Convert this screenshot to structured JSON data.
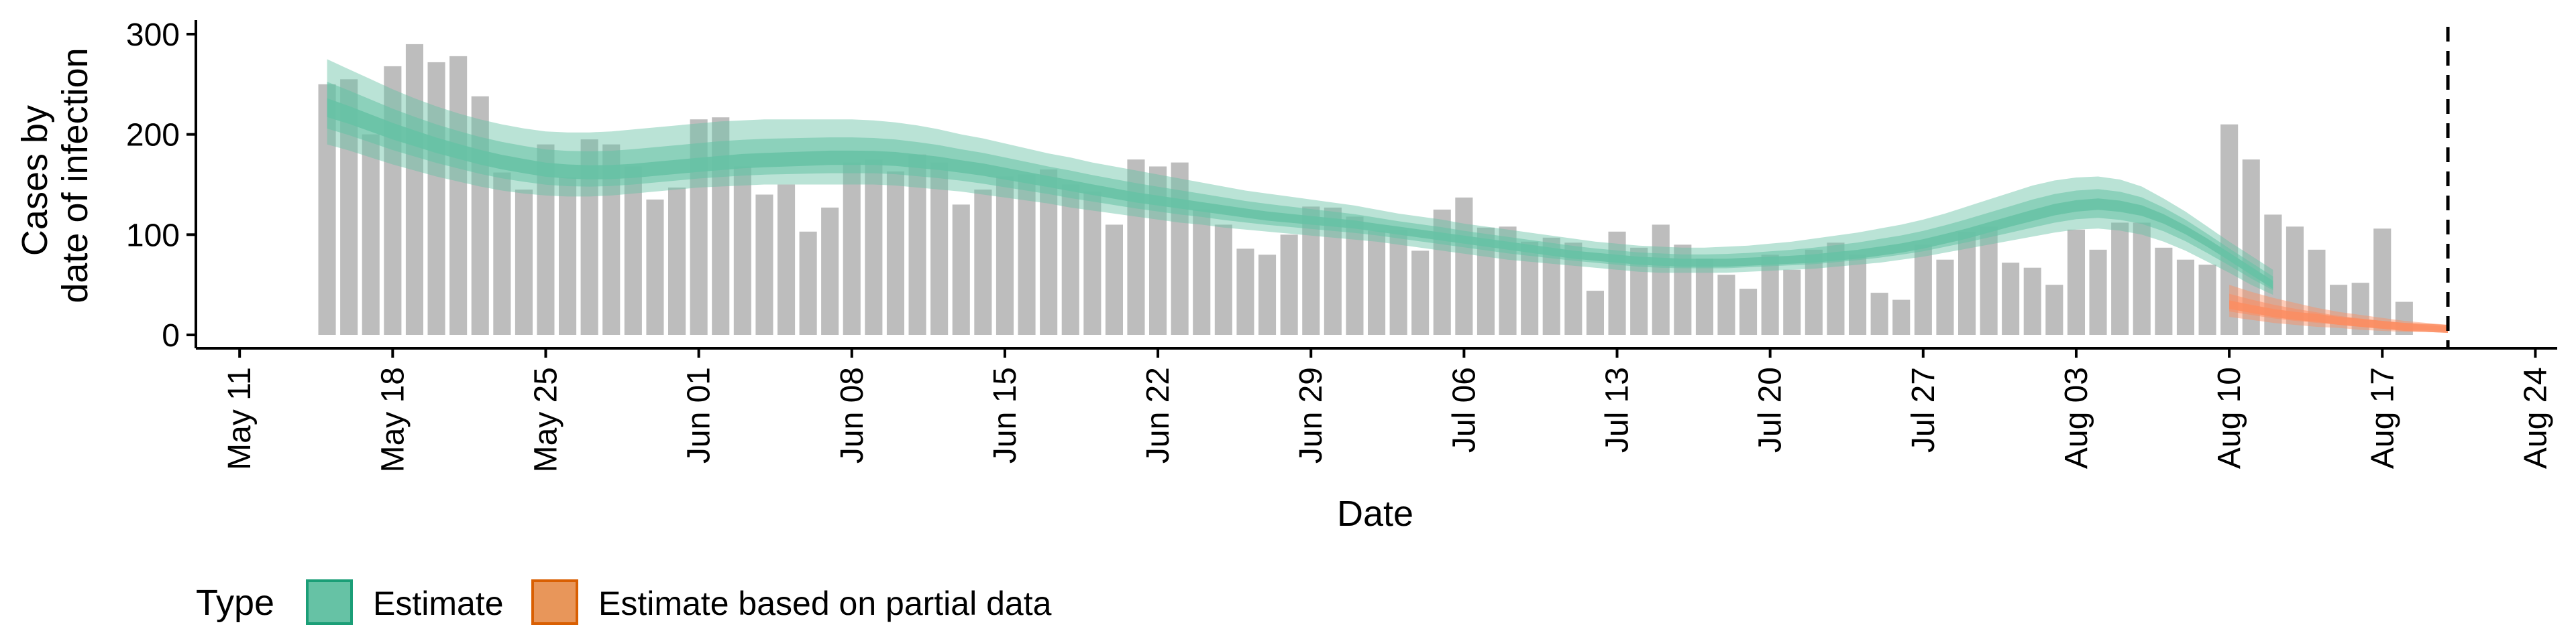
{
  "chart_data": {
    "type": "bar",
    "title": "",
    "xlabel": "Date",
    "ylabel_lines": [
      "Cases by",
      "date of infection"
    ],
    "ylim": [
      0,
      310
    ],
    "yticks": [
      0,
      100,
      200,
      300
    ],
    "x_ticks": [
      {
        "label": "May 11",
        "date": "2020-05-11"
      },
      {
        "label": "May 18",
        "date": "2020-05-18"
      },
      {
        "label": "May 25",
        "date": "2020-05-25"
      },
      {
        "label": "Jun 01",
        "date": "2020-06-01"
      },
      {
        "label": "Jun 08",
        "date": "2020-06-08"
      },
      {
        "label": "Jun 15",
        "date": "2020-06-15"
      },
      {
        "label": "Jun 22",
        "date": "2020-06-22"
      },
      {
        "label": "Jun 29",
        "date": "2020-06-29"
      },
      {
        "label": "Jul 06",
        "date": "2020-07-06"
      },
      {
        "label": "Jul 13",
        "date": "2020-07-13"
      },
      {
        "label": "Jul 20",
        "date": "2020-07-20"
      },
      {
        "label": "Jul 27",
        "date": "2020-07-27"
      },
      {
        "label": "Aug 03",
        "date": "2020-08-03"
      },
      {
        "label": "Aug 10",
        "date": "2020-08-10"
      },
      {
        "label": "Aug 17",
        "date": "2020-08-17"
      },
      {
        "label": "Aug 24",
        "date": "2020-08-24"
      }
    ],
    "x_range": [
      "2020-05-09",
      "2020-08-25"
    ],
    "vline_date": "2020-08-20",
    "bars_start_date": "2020-05-15",
    "bar_values": [
      250,
      255,
      200,
      268,
      290,
      272,
      278,
      238,
      162,
      145,
      190,
      157,
      195,
      190,
      168,
      135,
      147,
      215,
      217,
      168,
      140,
      150,
      103,
      127,
      172,
      175,
      163,
      180,
      172,
      130,
      145,
      158,
      160,
      165,
      150,
      143,
      110,
      175,
      168,
      172,
      125,
      110,
      86,
      80,
      100,
      128,
      127,
      118,
      104,
      105,
      84,
      125,
      137,
      107,
      108,
      93,
      97,
      92,
      44,
      103,
      87,
      110,
      90,
      76,
      60,
      46,
      80,
      65,
      85,
      92,
      80,
      42,
      35,
      90,
      75,
      103,
      108,
      72,
      67,
      50,
      105,
      85,
      112,
      112,
      87,
      75,
      70,
      210,
      175,
      120,
      108,
      85,
      50,
      52,
      106,
      33
    ],
    "series": [
      {
        "name": "Estimate",
        "color": "#66c2a5",
        "start_date": "2020-05-15",
        "median": [
          225,
          218,
          210,
          202,
          195,
          188,
          182,
          176,
          171,
          167,
          163,
          161,
          160,
          160,
          161,
          163,
          165,
          167,
          169,
          171,
          172,
          173,
          174,
          175,
          175,
          175,
          174,
          172,
          170,
          167,
          164,
          160,
          156,
          152,
          148,
          144,
          140,
          136,
          133,
          130,
          127,
          124,
          121,
          118,
          116,
          114,
          112,
          110,
          107,
          104,
          101,
          98,
          95,
          92,
          89,
          86,
          83,
          80,
          78,
          76,
          74,
          73,
          72,
          72,
          72,
          73,
          74,
          75,
          76,
          78,
          80,
          83,
          86,
          90,
          95,
          100,
          106,
          112,
          118,
          124,
          128,
          130,
          128,
          124,
          116,
          105,
          92,
          78,
          64,
          50
        ],
        "lower": [
          190,
          184,
          177,
          170,
          164,
          158,
          153,
          148,
          144,
          141,
          139,
          138,
          138,
          139,
          141,
          143,
          145,
          147,
          148,
          149,
          150,
          150,
          150,
          150,
          150,
          150,
          149,
          147,
          145,
          143,
          140,
          137,
          134,
          131,
          127,
          124,
          121,
          118,
          115,
          112,
          110,
          107,
          105,
          103,
          101,
          99,
          97,
          95,
          93,
          90,
          87,
          84,
          81,
          78,
          75,
          73,
          71,
          69,
          67,
          65,
          63,
          62,
          62,
          62,
          62,
          63,
          64,
          65,
          66,
          68,
          70,
          72,
          75,
          78,
          82,
          86,
          90,
          94,
          98,
          102,
          105,
          106,
          104,
          100,
          93,
          84,
          73,
          62,
          50,
          40
        ],
        "upper": [
          275,
          265,
          255,
          245,
          236,
          228,
          221,
          215,
          210,
          206,
          203,
          202,
          202,
          203,
          205,
          207,
          209,
          211,
          213,
          214,
          215,
          215,
          215,
          215,
          215,
          214,
          212,
          209,
          205,
          200,
          196,
          191,
          186,
          181,
          177,
          172,
          168,
          164,
          160,
          156,
          152,
          148,
          144,
          141,
          138,
          135,
          132,
          129,
          125,
          121,
          118,
          115,
          111,
          108,
          105,
          102,
          99,
          96,
          93,
          91,
          89,
          88,
          87,
          87,
          88,
          89,
          91,
          93,
          96,
          99,
          102,
          106,
          110,
          115,
          121,
          128,
          135,
          142,
          149,
          154,
          157,
          158,
          155,
          148,
          136,
          123,
          108,
          93,
          79,
          65
        ]
      },
      {
        "name": "Estimate based on partial data",
        "color": "#fc8d62",
        "start_date": "2020-08-10",
        "median": [
          30,
          26,
          22,
          19,
          17,
          14,
          12,
          10,
          8,
          7,
          6
        ],
        "lower": [
          18,
          15,
          12,
          10,
          8,
          7,
          5,
          4,
          3,
          3,
          2
        ],
        "upper": [
          50,
          43,
          37,
          32,
          27,
          23,
          20,
          17,
          14,
          12,
          10
        ]
      }
    ],
    "legend": {
      "title": "Type",
      "placement": "bottom-left",
      "items": [
        "Estimate",
        "Estimate based on partial data"
      ]
    }
  }
}
